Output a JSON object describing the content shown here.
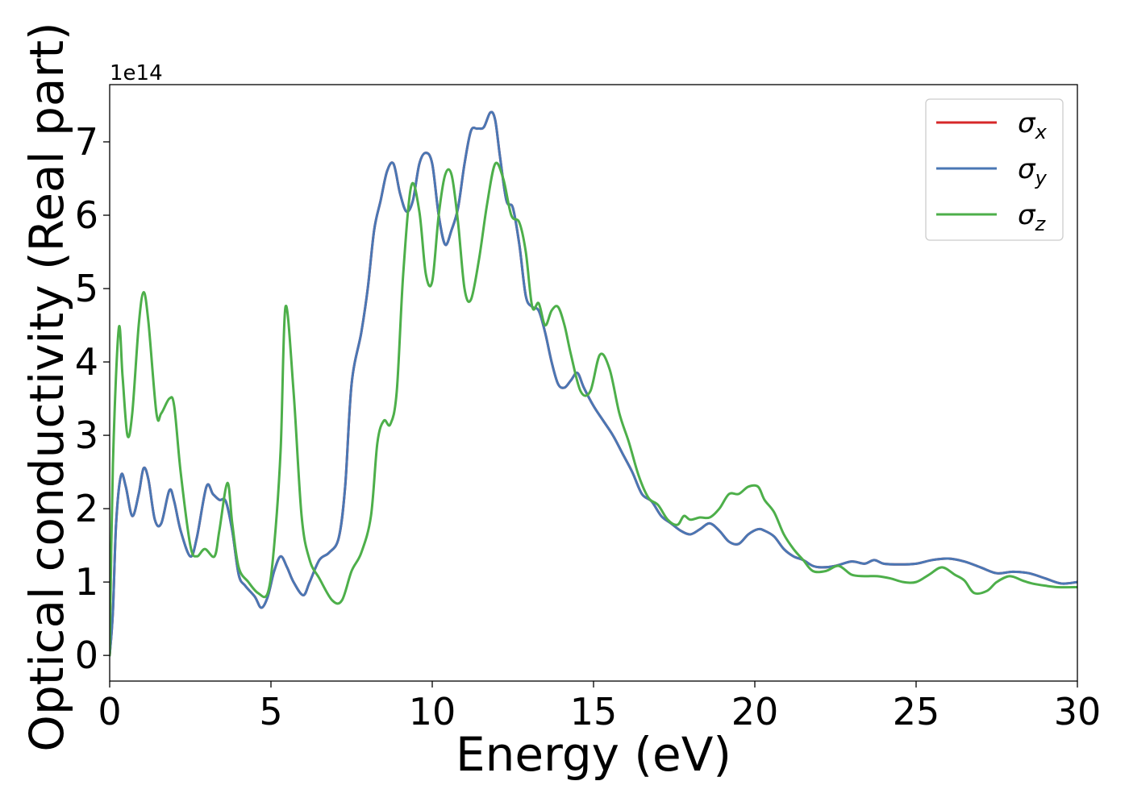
{
  "chart_data": {
    "type": "line",
    "xlabel": "Energy (eV)",
    "ylabel": "Optical conductivity (Real part)",
    "y_offset_text": "1e14",
    "xlim": [
      0,
      30
    ],
    "ylim": [
      -0.35,
      7.78
    ],
    "x_ticks": [
      0,
      5,
      10,
      15,
      20,
      25,
      30
    ],
    "y_ticks": [
      0,
      1,
      2,
      3,
      4,
      5,
      6,
      7
    ],
    "grid": false,
    "legend_position": "top-right",
    "series": [
      {
        "name": "σx",
        "symbol": "σ",
        "subscript": "x",
        "color": "#d62728",
        "x": [
          0,
          0.1,
          0.2,
          0.35,
          0.5,
          0.7,
          0.9,
          1.05,
          1.2,
          1.4,
          1.6,
          1.85,
          2.0,
          2.2,
          2.5,
          2.7,
          3.0,
          3.2,
          3.4,
          3.6,
          3.8,
          4.0,
          4.2,
          4.5,
          4.7,
          4.9,
          5.1,
          5.3,
          5.5,
          5.7,
          6.0,
          6.2,
          6.5,
          6.8,
          7.1,
          7.3,
          7.5,
          7.8,
          8.0,
          8.2,
          8.4,
          8.6,
          8.8,
          9.0,
          9.2,
          9.4,
          9.6,
          9.8,
          10.0,
          10.2,
          10.4,
          10.6,
          10.8,
          11.0,
          11.2,
          11.4,
          11.6,
          11.8,
          11.95,
          12.1,
          12.3,
          12.5,
          12.7,
          12.9,
          13.1,
          13.3,
          13.5,
          13.7,
          13.9,
          14.1,
          14.3,
          14.5,
          14.7,
          15.0,
          15.3,
          15.6,
          15.9,
          16.2,
          16.5,
          16.8,
          17.1,
          17.4,
          17.7,
          18.0,
          18.3,
          18.6,
          18.9,
          19.2,
          19.5,
          19.8,
          20.1,
          20.3,
          20.6,
          20.9,
          21.2,
          21.5,
          21.8,
          22.1,
          22.5,
          23.0,
          23.4,
          23.7,
          24.0,
          24.5,
          25.0,
          25.5,
          26.0,
          26.5,
          27.0,
          27.5,
          28.0,
          28.5,
          29.0,
          29.5,
          30.0
        ],
        "y": [
          0,
          0.6,
          1.8,
          2.45,
          2.3,
          1.9,
          2.2,
          2.55,
          2.4,
          1.85,
          1.8,
          2.25,
          2.1,
          1.7,
          1.35,
          1.6,
          2.3,
          2.2,
          2.12,
          2.1,
          1.7,
          1.1,
          0.95,
          0.8,
          0.65,
          0.8,
          1.15,
          1.35,
          1.2,
          1.0,
          0.82,
          1.0,
          1.3,
          1.4,
          1.6,
          2.3,
          3.7,
          4.4,
          5.0,
          5.8,
          6.2,
          6.6,
          6.7,
          6.3,
          6.05,
          6.2,
          6.7,
          6.85,
          6.7,
          6.0,
          5.6,
          5.8,
          6.1,
          6.7,
          7.15,
          7.18,
          7.2,
          7.4,
          7.3,
          6.8,
          6.2,
          6.1,
          5.6,
          4.9,
          4.75,
          4.7,
          4.4,
          4.0,
          3.7,
          3.65,
          3.75,
          3.85,
          3.65,
          3.4,
          3.2,
          3.0,
          2.75,
          2.5,
          2.2,
          2.1,
          1.9,
          1.8,
          1.7,
          1.65,
          1.72,
          1.8,
          1.7,
          1.55,
          1.52,
          1.65,
          1.72,
          1.7,
          1.62,
          1.45,
          1.35,
          1.3,
          1.22,
          1.2,
          1.22,
          1.28,
          1.25,
          1.3,
          1.25,
          1.24,
          1.25,
          1.3,
          1.32,
          1.28,
          1.2,
          1.12,
          1.14,
          1.12,
          1.05,
          0.98,
          1.0
        ]
      },
      {
        "name": "σy",
        "symbol": "σ",
        "subscript": "y",
        "color": "#4a77b4",
        "x": [
          0,
          0.1,
          0.2,
          0.35,
          0.5,
          0.7,
          0.9,
          1.05,
          1.2,
          1.4,
          1.6,
          1.85,
          2.0,
          2.2,
          2.5,
          2.7,
          3.0,
          3.2,
          3.4,
          3.6,
          3.8,
          4.0,
          4.2,
          4.5,
          4.7,
          4.9,
          5.1,
          5.3,
          5.5,
          5.7,
          6.0,
          6.2,
          6.5,
          6.8,
          7.1,
          7.3,
          7.5,
          7.8,
          8.0,
          8.2,
          8.4,
          8.6,
          8.8,
          9.0,
          9.2,
          9.4,
          9.6,
          9.8,
          10.0,
          10.2,
          10.4,
          10.6,
          10.8,
          11.0,
          11.2,
          11.4,
          11.6,
          11.8,
          11.95,
          12.1,
          12.3,
          12.5,
          12.7,
          12.9,
          13.1,
          13.3,
          13.5,
          13.7,
          13.9,
          14.1,
          14.3,
          14.5,
          14.7,
          15.0,
          15.3,
          15.6,
          15.9,
          16.2,
          16.5,
          16.8,
          17.1,
          17.4,
          17.7,
          18.0,
          18.3,
          18.6,
          18.9,
          19.2,
          19.5,
          19.8,
          20.1,
          20.3,
          20.6,
          20.9,
          21.2,
          21.5,
          21.8,
          22.1,
          22.5,
          23.0,
          23.4,
          23.7,
          24.0,
          24.5,
          25.0,
          25.5,
          26.0,
          26.5,
          27.0,
          27.5,
          28.0,
          28.5,
          29.0,
          29.5,
          30.0
        ],
        "y": [
          0,
          0.6,
          1.8,
          2.45,
          2.3,
          1.9,
          2.2,
          2.55,
          2.4,
          1.85,
          1.8,
          2.25,
          2.1,
          1.7,
          1.35,
          1.6,
          2.3,
          2.2,
          2.12,
          2.1,
          1.7,
          1.1,
          0.95,
          0.8,
          0.65,
          0.8,
          1.15,
          1.35,
          1.2,
          1.0,
          0.82,
          1.0,
          1.3,
          1.4,
          1.6,
          2.3,
          3.7,
          4.4,
          5.0,
          5.8,
          6.2,
          6.6,
          6.7,
          6.3,
          6.05,
          6.2,
          6.7,
          6.85,
          6.7,
          6.0,
          5.6,
          5.8,
          6.1,
          6.7,
          7.15,
          7.18,
          7.2,
          7.4,
          7.3,
          6.8,
          6.2,
          6.1,
          5.6,
          4.9,
          4.75,
          4.7,
          4.4,
          4.0,
          3.7,
          3.65,
          3.75,
          3.85,
          3.65,
          3.4,
          3.2,
          3.0,
          2.75,
          2.5,
          2.2,
          2.1,
          1.9,
          1.8,
          1.7,
          1.65,
          1.72,
          1.8,
          1.7,
          1.55,
          1.52,
          1.65,
          1.72,
          1.7,
          1.62,
          1.45,
          1.35,
          1.3,
          1.22,
          1.2,
          1.22,
          1.28,
          1.25,
          1.3,
          1.25,
          1.24,
          1.25,
          1.3,
          1.32,
          1.28,
          1.2,
          1.12,
          1.14,
          1.12,
          1.05,
          0.98,
          1.0
        ]
      },
      {
        "name": "σz",
        "symbol": "σ",
        "subscript": "z",
        "color": "#4daf4a",
        "x": [
          0,
          0.1,
          0.28,
          0.4,
          0.55,
          0.7,
          0.9,
          1.05,
          1.2,
          1.45,
          1.6,
          1.85,
          2.0,
          2.2,
          2.5,
          2.7,
          2.95,
          3.25,
          3.4,
          3.65,
          3.8,
          4.0,
          4.3,
          4.6,
          4.9,
          5.1,
          5.3,
          5.45,
          5.7,
          5.95,
          6.2,
          6.5,
          6.9,
          7.2,
          7.5,
          7.8,
          8.1,
          8.3,
          8.5,
          8.7,
          8.9,
          9.1,
          9.35,
          9.6,
          9.8,
          10.0,
          10.2,
          10.4,
          10.6,
          10.8,
          11.0,
          11.2,
          11.45,
          11.7,
          11.95,
          12.2,
          12.45,
          12.7,
          12.9,
          13.1,
          13.3,
          13.5,
          13.7,
          13.9,
          14.1,
          14.3,
          14.6,
          14.9,
          15.2,
          15.5,
          15.8,
          16.1,
          16.4,
          16.7,
          17.0,
          17.3,
          17.6,
          17.8,
          18.0,
          18.3,
          18.6,
          18.9,
          19.2,
          19.5,
          19.8,
          20.1,
          20.3,
          20.6,
          20.9,
          21.2,
          21.5,
          21.8,
          22.2,
          22.6,
          23.0,
          23.4,
          23.8,
          24.2,
          24.6,
          25.0,
          25.4,
          25.8,
          26.2,
          26.5,
          26.8,
          27.2,
          27.5,
          27.9,
          28.3,
          28.6,
          29.0,
          29.4,
          30.0
        ],
        "y": [
          0,
          2.6,
          4.45,
          3.8,
          3.0,
          3.3,
          4.5,
          4.95,
          4.55,
          3.3,
          3.3,
          3.5,
          3.4,
          2.5,
          1.5,
          1.35,
          1.45,
          1.35,
          1.7,
          2.35,
          1.8,
          1.2,
          1.0,
          0.85,
          0.85,
          1.5,
          2.8,
          4.75,
          3.6,
          1.9,
          1.3,
          1.05,
          0.75,
          0.75,
          1.15,
          1.4,
          1.9,
          2.9,
          3.2,
          3.15,
          3.6,
          5.2,
          6.4,
          6.05,
          5.2,
          5.1,
          6.0,
          6.55,
          6.55,
          5.9,
          5.0,
          4.85,
          5.4,
          6.15,
          6.7,
          6.5,
          6.0,
          5.9,
          5.5,
          4.75,
          4.8,
          4.5,
          4.7,
          4.75,
          4.5,
          4.1,
          3.6,
          3.6,
          4.1,
          3.9,
          3.3,
          2.9,
          2.45,
          2.15,
          2.05,
          1.85,
          1.78,
          1.9,
          1.85,
          1.88,
          1.88,
          2.0,
          2.2,
          2.2,
          2.3,
          2.3,
          2.12,
          1.95,
          1.65,
          1.45,
          1.3,
          1.15,
          1.15,
          1.22,
          1.1,
          1.08,
          1.08,
          1.05,
          1.0,
          1.0,
          1.1,
          1.2,
          1.1,
          1.02,
          0.85,
          0.88,
          1.0,
          1.08,
          1.02,
          0.98,
          0.95,
          0.93,
          0.93
        ]
      }
    ]
  }
}
